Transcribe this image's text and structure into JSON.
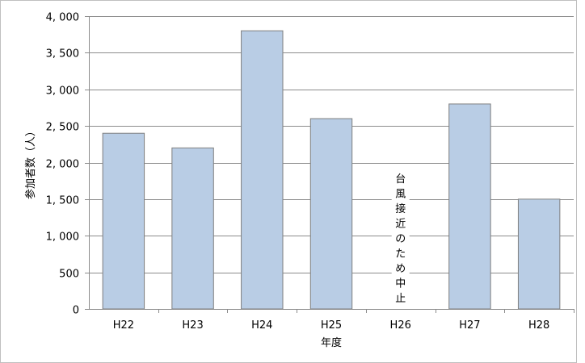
{
  "chart_data": {
    "type": "bar",
    "categories": [
      "H22",
      "H23",
      "H24",
      "H25",
      "H26",
      "H27",
      "H28"
    ],
    "values": [
      2400,
      2200,
      3800,
      2600,
      null,
      2800,
      1500
    ],
    "xlabel": "年度",
    "ylabel": "参加者数（人）",
    "ylim": [
      0,
      4000
    ],
    "yticks": [
      0,
      500,
      1000,
      1500,
      2000,
      2500,
      3000,
      3500,
      4000
    ],
    "ytick_labels": [
      "0",
      "500",
      "1, 000",
      "1, 500",
      "2, 000",
      "2, 500",
      "3, 000",
      "3, 500",
      "4, 000"
    ],
    "grid": true,
    "annotation": {
      "category": "H26",
      "text": "台風接近のため中止"
    }
  },
  "colors": {
    "bar_fill": "#b9cde5",
    "bar_stroke": "#7f7f7f",
    "grid": "#8c8c8c",
    "axis": "#8c8c8c",
    "frame": "#bfbfbf"
  }
}
